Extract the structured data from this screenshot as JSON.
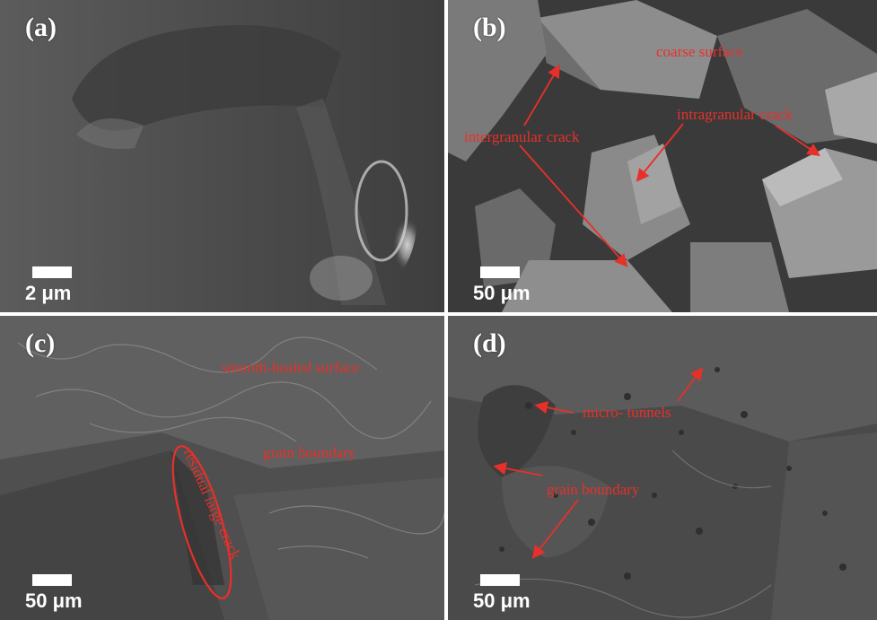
{
  "colors": {
    "annotation": "#e8302a",
    "label": "#ffffff"
  },
  "panels": {
    "a": {
      "label": "(a)",
      "scale": "2 μm"
    },
    "b": {
      "label": "(b)",
      "scale": "50 μm",
      "annotations": {
        "coarse": "coarse surface",
        "intragranular": "intragranular crack",
        "intergranular": "intergranular crack"
      }
    },
    "c": {
      "label": "(c)",
      "scale": "50 μm",
      "annotations": {
        "smooth": "smooth-healed surface",
        "grain": "grain boundary",
        "residual": "residual large crack"
      }
    },
    "d": {
      "label": "(d)",
      "scale": "50 μm",
      "annotations": {
        "tunnels": "micro- tunnels",
        "grain": "grain boundary"
      }
    }
  }
}
